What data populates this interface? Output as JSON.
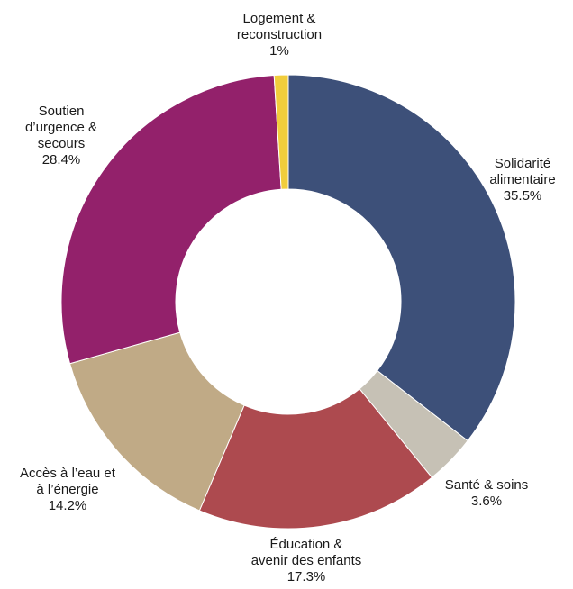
{
  "chart_data": {
    "type": "pie",
    "variant": "donut",
    "title": "",
    "legend": "none",
    "slices": [
      {
        "label_lines": [
          "Solidarité",
          "alimentaire"
        ],
        "value": 35.5,
        "value_label": "35.5%",
        "color": "#3d5079"
      },
      {
        "label_lines": [
          "Santé & soins"
        ],
        "value": 3.6,
        "value_label": "3.6%",
        "color": "#c6c1b5"
      },
      {
        "label_lines": [
          "Éducation &",
          "avenir des enfants"
        ],
        "value": 17.3,
        "value_label": "17.3%",
        "color": "#ad4a4f"
      },
      {
        "label_lines": [
          "Accès à l’eau et",
          "à l’énergie"
        ],
        "value": 14.2,
        "value_label": "14.2%",
        "color": "#c0aa86"
      },
      {
        "label_lines": [
          "Soutien",
          "d’urgence &",
          "secours"
        ],
        "value": 28.4,
        "value_label": "28.4%",
        "color": "#93216b"
      },
      {
        "label_lines": [
          "Logement &",
          "reconstruction"
        ],
        "value": 1,
        "value_label": "1%",
        "color": "#f1cd3c"
      }
    ]
  }
}
